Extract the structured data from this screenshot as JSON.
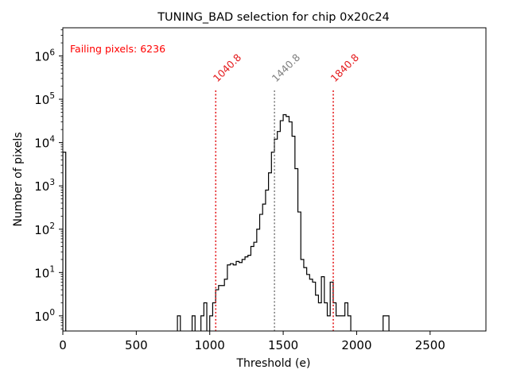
{
  "chart_data": {
    "type": "histogram",
    "title": "TUNING_BAD selection for chip 0x20c24",
    "xlabel": "Threshold (e)",
    "ylabel": "Number of pixels",
    "xlim": [
      0,
      2880
    ],
    "ylim_log10": [
      -0.35,
      6.65
    ],
    "yscale": "log",
    "x_ticks": [
      {
        "value": 0,
        "label": "0"
      },
      {
        "value": 500,
        "label": "500"
      },
      {
        "value": 1000,
        "label": "1000"
      },
      {
        "value": 1500,
        "label": "1500"
      },
      {
        "value": 2000,
        "label": "2000"
      },
      {
        "value": 2500,
        "label": "2500"
      }
    ],
    "y_ticks": [
      {
        "exp": 0,
        "label_base": "10",
        "label_exp": "0"
      },
      {
        "exp": 1,
        "label_base": "10",
        "label_exp": "1"
      },
      {
        "exp": 2,
        "label_base": "10",
        "label_exp": "2"
      },
      {
        "exp": 3,
        "label_base": "10",
        "label_exp": "3"
      },
      {
        "exp": 4,
        "label_base": "10",
        "label_exp": "4"
      },
      {
        "exp": 5,
        "label_base": "10",
        "label_exp": "5"
      },
      {
        "exp": 6,
        "label_base": "10",
        "label_exp": "6"
      }
    ],
    "bin_width": 20,
    "bins": [
      [
        0,
        6000
      ],
      [
        780,
        1
      ],
      [
        880,
        1
      ],
      [
        940,
        1
      ],
      [
        960,
        2
      ],
      [
        1000,
        1
      ],
      [
        1020,
        2
      ],
      [
        1040,
        4
      ],
      [
        1060,
        5
      ],
      [
        1080,
        5
      ],
      [
        1100,
        7
      ],
      [
        1120,
        15
      ],
      [
        1140,
        16
      ],
      [
        1160,
        15
      ],
      [
        1180,
        18
      ],
      [
        1200,
        17
      ],
      [
        1220,
        20
      ],
      [
        1240,
        23
      ],
      [
        1260,
        25
      ],
      [
        1280,
        40
      ],
      [
        1300,
        50
      ],
      [
        1320,
        100
      ],
      [
        1340,
        220
      ],
      [
        1360,
        380
      ],
      [
        1380,
        800
      ],
      [
        1400,
        2000
      ],
      [
        1420,
        6000
      ],
      [
        1440,
        12000
      ],
      [
        1460,
        18000
      ],
      [
        1480,
        32000
      ],
      [
        1500,
        44000
      ],
      [
        1520,
        40000
      ],
      [
        1540,
        30000
      ],
      [
        1560,
        14000
      ],
      [
        1580,
        2500
      ],
      [
        1600,
        250
      ],
      [
        1620,
        20
      ],
      [
        1640,
        13
      ],
      [
        1660,
        9
      ],
      [
        1680,
        7
      ],
      [
        1700,
        6
      ],
      [
        1720,
        3
      ],
      [
        1740,
        2
      ],
      [
        1760,
        8
      ],
      [
        1780,
        2
      ],
      [
        1800,
        1
      ],
      [
        1820,
        6
      ],
      [
        1840,
        2
      ],
      [
        1860,
        1
      ],
      [
        1880,
        1
      ],
      [
        1900,
        1
      ],
      [
        1920,
        2
      ],
      [
        1940,
        1
      ],
      [
        2180,
        1
      ],
      [
        2200,
        1
      ]
    ],
    "vlines": [
      {
        "x": 1040.8,
        "label": "1040.8",
        "color": "#e41a1c"
      },
      {
        "x": 1440.8,
        "label": "1440.8",
        "color": "#808080"
      },
      {
        "x": 1840.8,
        "label": "1840.8",
        "color": "#e41a1c"
      }
    ],
    "annotation": {
      "text": "Failing pixels: 6236",
      "color": "#ff0000"
    }
  }
}
